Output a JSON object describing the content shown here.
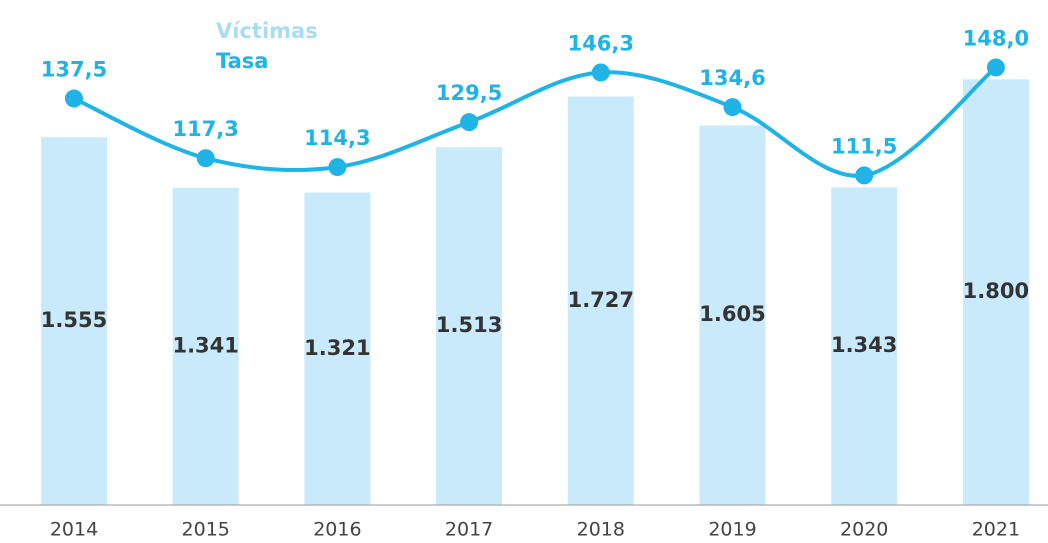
{
  "chart_data": {
    "type": "bar",
    "categories": [
      "2014",
      "2015",
      "2016",
      "2017",
      "2018",
      "2019",
      "2020",
      "2021"
    ],
    "series": [
      {
        "name": "Víctimas",
        "color": "#c8eafb",
        "legend_color": "#a8dcf5",
        "values": [
          1555,
          1341,
          1321,
          1513,
          1727,
          1605,
          1343,
          1800
        ],
        "value_labels": [
          "1.555",
          "1.341",
          "1.321",
          "1.513",
          "1.727",
          "1.605",
          "1.343",
          "1.800"
        ]
      },
      {
        "name": "Tasa",
        "type": "line",
        "axis": "y2",
        "color": "#1fb3e6",
        "values": [
          137.5,
          117.3,
          114.3,
          129.5,
          146.3,
          134.6,
          111.5,
          148.0
        ],
        "value_labels": [
          "137,5",
          "117,3",
          "114,3",
          "129,5",
          "146,3",
          "134,6",
          "111,5",
          "148,0"
        ]
      }
    ],
    "ylim": [
      0,
      2000
    ],
    "y2lim": [
      0,
      160
    ]
  }
}
